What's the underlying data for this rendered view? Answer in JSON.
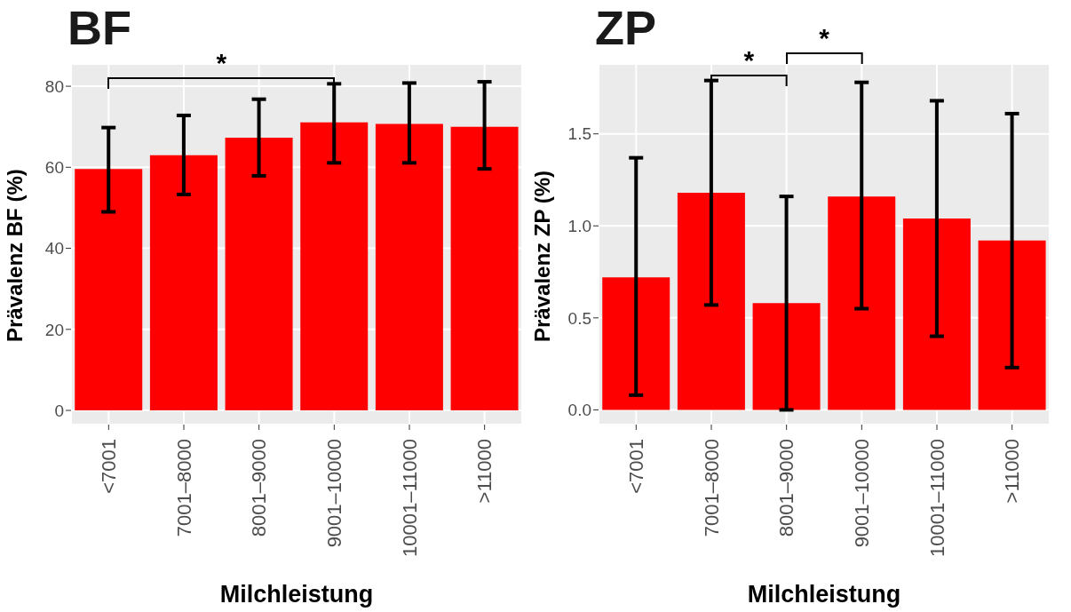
{
  "chart_data": [
    {
      "type": "bar",
      "title": "BF",
      "xlabel": "Milchleistung",
      "ylabel": "Prävalenz BF (%)",
      "categories": [
        "<7001",
        "7001–8000",
        "8001–9000",
        "9001–10000",
        "10001–11000",
        ">11000"
      ],
      "values": [
        59.6,
        63.0,
        67.3,
        71.1,
        70.7,
        70.0
      ],
      "color": "#ff0000",
      "errors": [
        [
          49.0,
          69.8
        ],
        [
          53.3,
          72.8
        ],
        [
          57.9,
          76.8
        ],
        [
          61.1,
          80.6
        ],
        [
          61.1,
          80.8
        ],
        [
          59.6,
          81.1
        ]
      ],
      "ylim": [
        -3.5,
        85.5
      ],
      "yticks": [
        0,
        20,
        40,
        60,
        80
      ],
      "grid": true,
      "legend": false,
      "annotations": [
        "*"
      ]
    },
    {
      "type": "bar",
      "title": "ZP",
      "xlabel": "Milchleistung",
      "ylabel": "Prävalenz ZP (%)",
      "categories": [
        "<7001",
        "7001–8000",
        "8001–9000",
        "9001–10000",
        "10001–11000",
        ">11000"
      ],
      "values": [
        0.72,
        1.18,
        0.58,
        1.16,
        1.04,
        0.92
      ],
      "color": "#ff0000",
      "errors": [
        [
          0.08,
          1.37
        ],
        [
          0.57,
          1.79
        ],
        [
          0.0,
          1.16
        ],
        [
          0.55,
          1.78
        ],
        [
          0.4,
          1.68
        ],
        [
          0.23,
          1.61
        ]
      ],
      "ylim": [
        -0.08,
        1.88
      ],
      "yticks": [
        {
          "value": 0,
          "label": "0.0"
        },
        {
          "value": 0.5,
          "label": "0.5"
        },
        {
          "value": 1,
          "label": "1.0"
        },
        {
          "value": 1.5,
          "label": "1.5"
        }
      ],
      "grid": true,
      "legend": false,
      "annotations": [
        "*",
        "*"
      ]
    }
  ]
}
